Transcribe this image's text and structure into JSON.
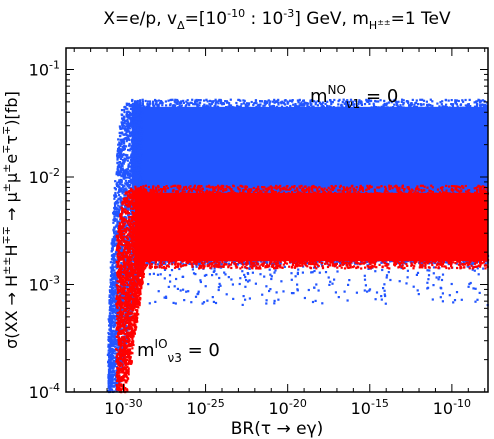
{
  "chart_data": {
    "type": "scatter",
    "title": {
      "pre": "X=e/p, v",
      "v_sub": "Δ",
      "mid1": "=[10",
      "exp1": "-10",
      "mid2": " : 10",
      "exp2": "-3",
      "mid3": "] GeV, m",
      "m_sub": "H",
      "m_subsup": "±±",
      "post": "=1 TeV"
    },
    "xlabel": "BR(τ → eγ)",
    "ylabel": {
      "main1": "σ(XX → H",
      "sup1": "±±",
      "main2": "H",
      "sup2": "∓∓",
      "main3": " → μ",
      "sup3": "±",
      "main4": "μ",
      "sup4": "±",
      "main5": "e",
      "sup5": "∓",
      "main6": "τ",
      "sup6": "∓",
      "main7": ")[fb]"
    },
    "x_scale": "log",
    "y_scale": "log",
    "xlim_exp": [
      -33.5,
      -7.8
    ],
    "ylim_exp": [
      -4,
      -0.8
    ],
    "x_ticks": [
      {
        "exp": -30,
        "base": "10",
        "sup": "-30"
      },
      {
        "exp": -25,
        "base": "10",
        "sup": "-25"
      },
      {
        "exp": -20,
        "base": "10",
        "sup": "-20"
      },
      {
        "exp": -15,
        "base": "10",
        "sup": "-15"
      },
      {
        "exp": -10,
        "base": "10",
        "sup": "-10"
      }
    ],
    "y_ticks": [
      {
        "exp": -4,
        "base": "10",
        "sup": "-4"
      },
      {
        "exp": -3,
        "base": "10",
        "sup": "-3"
      },
      {
        "exp": -2,
        "base": "10",
        "sup": "-2"
      },
      {
        "exp": -1,
        "base": "10",
        "sup": "-1"
      }
    ],
    "grid": false,
    "series": [
      {
        "name_main": "m",
        "name_sup": "NO",
        "name_sub": "ν1",
        "name_tail": " = 0",
        "color": "#2255ff",
        "y_band_exp": [
          -2.78,
          -1.31
        ],
        "y_scatter_low_exp": -3.2,
        "x_rise_exp": [
          -31.0,
          -29.8
        ],
        "x_edge_exp": -30.9
      },
      {
        "name_main": "m",
        "name_sup": "IO",
        "name_sub": "ν3",
        "name_tail": " = 0",
        "color": "#ff0000",
        "y_band_exp": [
          -2.82,
          -2.11
        ],
        "x_rise_exp": [
          -31.0,
          -29.6
        ],
        "x_edge_exp": -30.4
      }
    ]
  }
}
